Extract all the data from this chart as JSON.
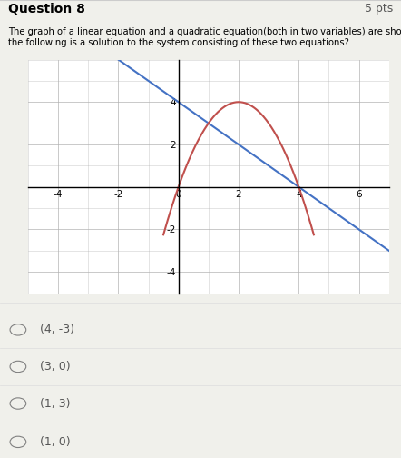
{
  "title": "Question 8",
  "pts": "5 pts",
  "question_text": "The graph of a linear equation and a quadratic equation(both in two variables) are shown. Which of\nthe following is a solution to the system consisting of these two equations?",
  "choices": [
    "(4, -3)",
    "(3, 0)",
    "(1, 3)",
    "(1, 0)"
  ],
  "xlim": [
    -5,
    7
  ],
  "ylim": [
    -5,
    6
  ],
  "xticks": [
    -4,
    -2,
    0,
    2,
    4,
    6
  ],
  "yticks": [
    -4,
    -2,
    0,
    2,
    4
  ],
  "linear_color": "#4472C4",
  "quadratic_color": "#C0504D",
  "bg_color": "#f0f0eb",
  "grid_color": "#b0b0b0",
  "linear_slope": -1,
  "linear_intercept": 4,
  "quad_a": -1,
  "quad_b": 4,
  "quad_c": 0,
  "line_width": 1.5
}
